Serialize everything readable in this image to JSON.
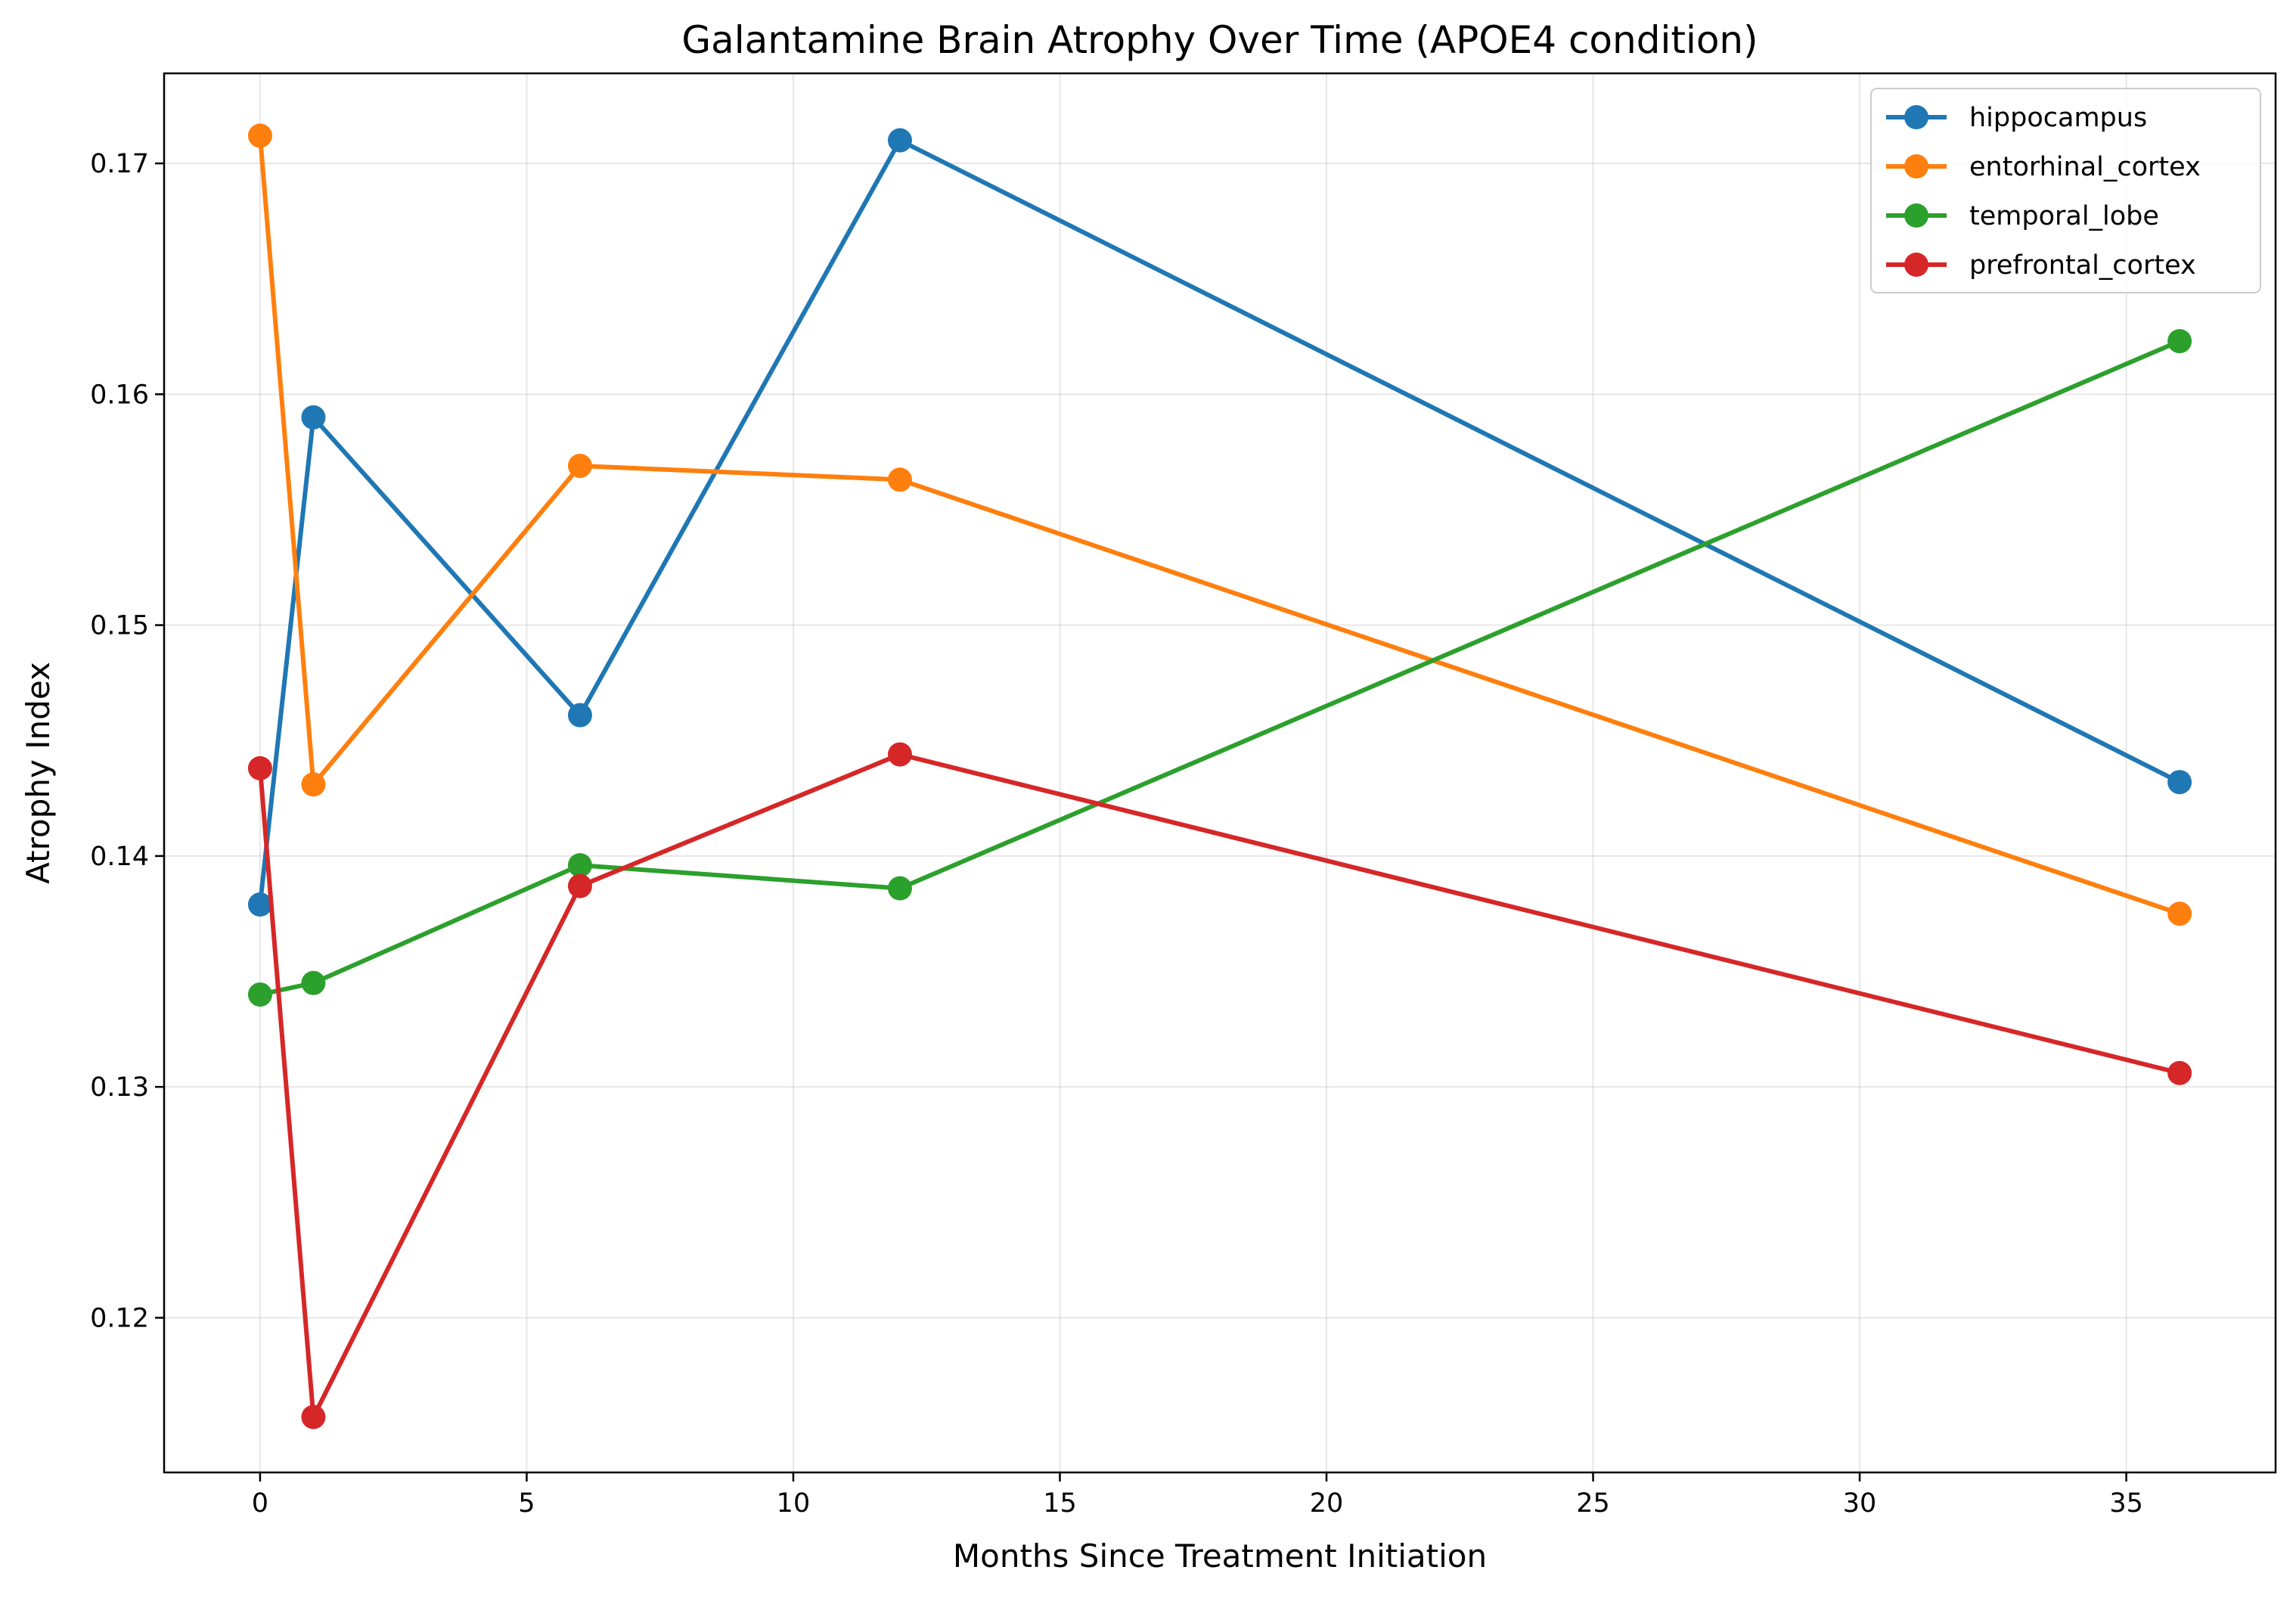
{
  "chart_data": {
    "type": "line",
    "title": "Galantamine Brain Atrophy Over Time (APOE4 condition)",
    "xlabel": "Months Since Treatment Initiation",
    "ylabel": "Atrophy Index",
    "xlim": [
      -1.8,
      37.8
    ],
    "ylim": [
      0.1133,
      0.1739
    ],
    "x_ticks": [
      0,
      5,
      10,
      15,
      20,
      25,
      30,
      35
    ],
    "y_ticks": [
      0.12,
      0.13,
      0.14,
      0.15,
      0.16,
      0.17
    ],
    "x_tick_labels": [
      "0",
      "5",
      "10",
      "15",
      "20",
      "25",
      "30",
      "35"
    ],
    "y_tick_labels": [
      "0.12",
      "0.13",
      "0.14",
      "0.15",
      "0.16",
      "0.17"
    ],
    "grid": true,
    "legend_position": "top-right",
    "x": [
      0,
      1,
      6,
      12,
      36
    ],
    "series": [
      {
        "name": "hippocampus",
        "color": "#1f77b4",
        "values": [
          0.1379,
          0.159,
          0.1461,
          0.171,
          0.1432
        ]
      },
      {
        "name": "entorhinal_cortex",
        "color": "#ff7f0e",
        "values": [
          0.1712,
          0.1431,
          0.1569,
          0.1563,
          0.1375
        ]
      },
      {
        "name": "temporal_lobe",
        "color": "#2ca02c",
        "values": [
          0.134,
          0.1345,
          0.1396,
          0.1386,
          0.1623
        ]
      },
      {
        "name": "prefrontal_cortex",
        "color": "#d62728",
        "values": [
          0.1438,
          0.1157,
          0.1387,
          0.1444,
          0.1306
        ]
      }
    ]
  }
}
